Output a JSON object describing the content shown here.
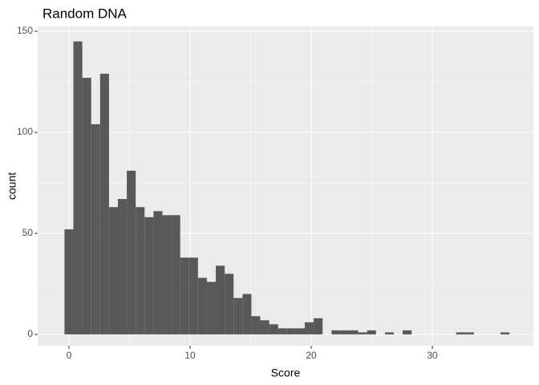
{
  "chart_data": {
    "type": "histogram",
    "title": "Random DNA",
    "x_label": "Score",
    "y_label": "count",
    "bins": [
      -0.367,
      0.368,
      1.102,
      1.837,
      2.572,
      3.306,
      4.041,
      4.776,
      5.51,
      6.245,
      6.98,
      7.714,
      8.449,
      9.184,
      9.918,
      10.653,
      11.388,
      12.122,
      12.857,
      13.592,
      14.327,
      15.061,
      15.796,
      16.531,
      17.265,
      18,
      18.735,
      19.469,
      20.204,
      20.939,
      21.673,
      22.408,
      23.143,
      23.878,
      24.612,
      25.347,
      26.082,
      26.816,
      27.551,
      28.286,
      29.02,
      29.755,
      30.49,
      31.224,
      31.959,
      32.694,
      33.429,
      34.163,
      34.898,
      35.633,
      36.367
    ],
    "values": [
      52,
      145,
      127,
      104,
      129,
      63,
      67,
      81,
      63,
      58,
      61,
      59,
      59,
      38,
      38,
      28,
      26,
      34,
      30,
      18,
      20,
      9,
      7,
      5,
      3,
      3,
      3,
      6,
      8,
      0,
      2,
      2,
      2,
      1,
      2,
      0,
      1,
      0,
      2,
      0,
      0,
      0,
      0,
      0,
      1,
      1,
      0,
      0,
      0,
      1
    ],
    "color": "#595959",
    "xlim": [
      -2.58,
      38.34
    ],
    "ylim": [
      -5.6,
      152.4
    ],
    "xticks": [
      0,
      10,
      20,
      30
    ],
    "yticks": [
      0,
      50,
      100,
      150
    ],
    "grid": true
  }
}
